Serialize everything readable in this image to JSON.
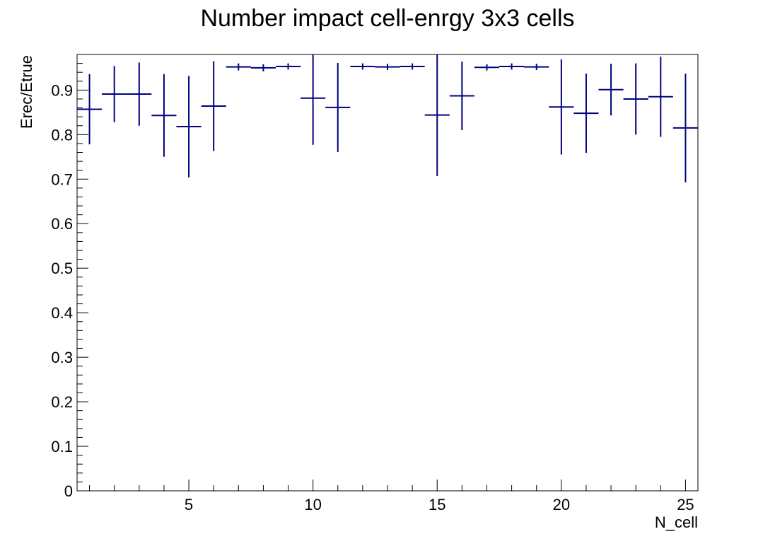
{
  "chart_data": {
    "type": "scatter",
    "title": "Number impact cell-enrgy 3x3 cells",
    "xlabel": "N_cell",
    "ylabel": "Erec/Etrue",
    "xlim": [
      0.5,
      25.5
    ],
    "ylim": [
      0,
      0.98
    ],
    "x_ticks": [
      5,
      10,
      15,
      20,
      25
    ],
    "y_ticks": [
      0,
      0.1,
      0.2,
      0.3,
      0.4,
      0.5,
      0.6,
      0.7,
      0.8,
      0.9
    ],
    "x_tick_labels": [
      "5",
      "10",
      "15",
      "20",
      "25"
    ],
    "y_tick_labels": [
      "0",
      "0.1",
      "0.2",
      "0.3",
      "0.4",
      "0.5",
      "0.6",
      "0.7",
      "0.8",
      "0.9"
    ],
    "grid": false,
    "line_color": "#000080",
    "points": [
      {
        "x": 1,
        "y": 0.857,
        "err": 0.079
      },
      {
        "x": 2,
        "y": 0.891,
        "err": 0.063
      },
      {
        "x": 3,
        "y": 0.891,
        "err": 0.071
      },
      {
        "x": 4,
        "y": 0.843,
        "err": 0.093
      },
      {
        "x": 5,
        "y": 0.818,
        "err": 0.114
      },
      {
        "x": 6,
        "y": 0.864,
        "err": 0.101
      },
      {
        "x": 7,
        "y": 0.952,
        "err": 0.008
      },
      {
        "x": 8,
        "y": 0.95,
        "err": 0.008
      },
      {
        "x": 9,
        "y": 0.953,
        "err": 0.007
      },
      {
        "x": 10,
        "y": 0.882,
        "err": 0.105
      },
      {
        "x": 11,
        "y": 0.861,
        "err": 0.1
      },
      {
        "x": 12,
        "y": 0.953,
        "err": 0.007
      },
      {
        "x": 13,
        "y": 0.952,
        "err": 0.007
      },
      {
        "x": 14,
        "y": 0.953,
        "err": 0.007
      },
      {
        "x": 15,
        "y": 0.844,
        "err": 0.137
      },
      {
        "x": 16,
        "y": 0.887,
        "err": 0.077
      },
      {
        "x": 17,
        "y": 0.951,
        "err": 0.007
      },
      {
        "x": 18,
        "y": 0.953,
        "err": 0.007
      },
      {
        "x": 19,
        "y": 0.952,
        "err": 0.007
      },
      {
        "x": 20,
        "y": 0.862,
        "err": 0.107
      },
      {
        "x": 21,
        "y": 0.848,
        "err": 0.089
      },
      {
        "x": 22,
        "y": 0.901,
        "err": 0.058
      },
      {
        "x": 23,
        "y": 0.88,
        "err": 0.08
      },
      {
        "x": 24,
        "y": 0.885,
        "err": 0.09
      },
      {
        "x": 25,
        "y": 0.815,
        "err": 0.122
      }
    ]
  }
}
